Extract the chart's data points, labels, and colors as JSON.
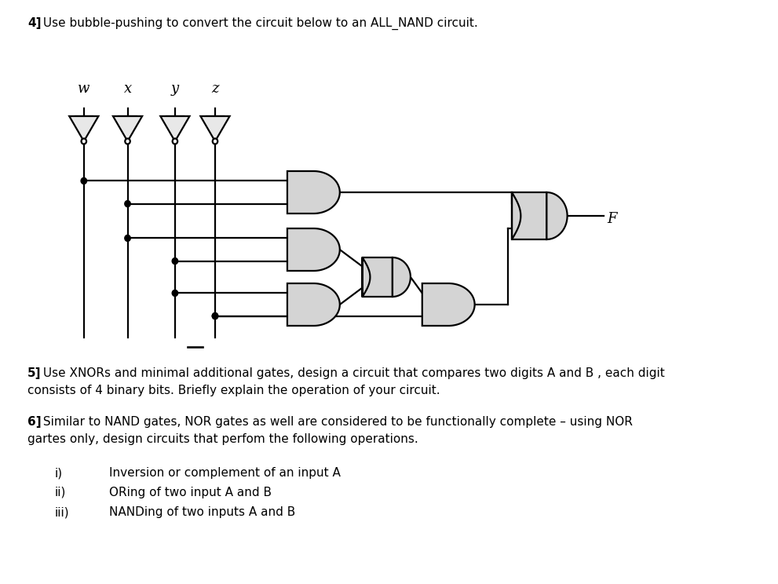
{
  "title_bold": "4]",
  "title_rest": " Use bubble-pushing to convert the circuit below to an ALL_NAND circuit.",
  "q5_bold": "5]",
  "q5_rest": " Use XNORs and minimal additional gates, design a circuit that compares two digits A and B , each digit",
  "q5_line2": "consists of 4 binary bits. Briefly explain the operation of your circuit.",
  "q6_bold": "6]",
  "q6_rest": " Similar to NAND gates, NOR gates as well are considered to be functionally complete – using NOR",
  "q6_line2": "gartes only, design circuits that perfom the following operations.",
  "list_i": "i)",
  "list_i_text": "Inversion or complement of an input A",
  "list_ii": "ii)",
  "list_ii_text": "ORing of two input A and B",
  "list_iii": "iii)",
  "list_iii_text": "NANDing of two inputs A and B",
  "input_labels": [
    "w",
    "x",
    "y",
    "z"
  ],
  "F_label": "F",
  "bg_color": "#ffffff",
  "gate_fill": "#d4d4d4",
  "gate_edge": "#000000",
  "line_color": "#000000",
  "lw": 1.6
}
